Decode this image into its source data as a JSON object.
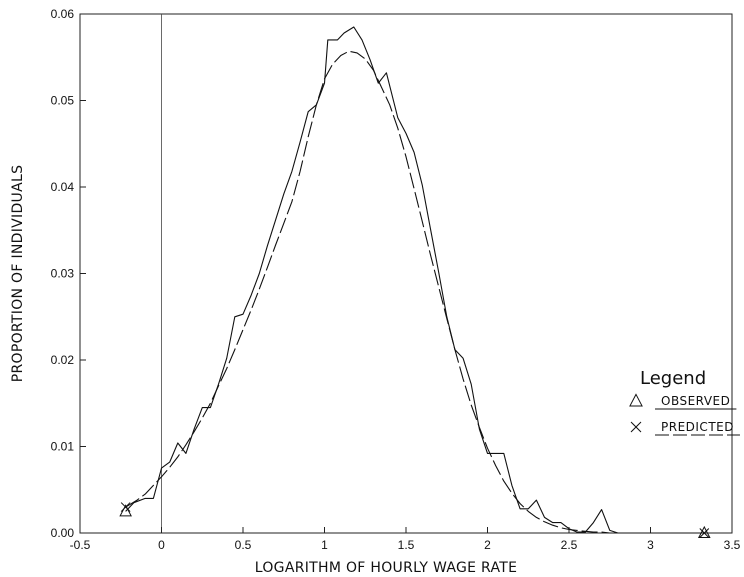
{
  "chart_data": {
    "type": "line",
    "xlabel": "LOGARITHM OF HOURLY WAGE RATE",
    "ylabel": "PROPORTION OF INDIVIDUALS",
    "xlim": [
      -0.5,
      3.5
    ],
    "ylim": [
      0.0,
      0.06
    ],
    "x_ticks": [
      -0.5,
      0,
      0.5,
      1,
      1.5,
      2,
      2.5,
      3,
      3.5
    ],
    "x_tick_labels": [
      "-0.5",
      "0",
      "0.5",
      "1",
      "1.5",
      "2",
      "2.5",
      "3",
      "3.5"
    ],
    "y_ticks": [
      0.0,
      0.01,
      0.02,
      0.03,
      0.04,
      0.05,
      0.06
    ],
    "y_tick_labels": [
      "0.00",
      "0.01",
      "0.02",
      "0.03",
      "0.04",
      "0.05",
      "0.06"
    ],
    "vertical_reference_x": 0,
    "grid": false,
    "legend": {
      "title": "Legend",
      "placement": "right",
      "entries": [
        {
          "marker": "triangle",
          "label": "OBSERVED"
        },
        {
          "marker": "cross",
          "label": "PREDICTED"
        }
      ]
    },
    "series": [
      {
        "name": "OBSERVED",
        "style": "solid",
        "marker": "triangle",
        "x": [
          -0.22,
          -0.17,
          -0.1,
          -0.05,
          0.0,
          0.05,
          0.1,
          0.15,
          0.2,
          0.25,
          0.3,
          0.35,
          0.4,
          0.45,
          0.5,
          0.55,
          0.6,
          0.65,
          0.7,
          0.75,
          0.8,
          0.85,
          0.9,
          0.95,
          1.0,
          1.02,
          1.08,
          1.12,
          1.18,
          1.23,
          1.28,
          1.33,
          1.38,
          1.45,
          1.5,
          1.55,
          1.6,
          1.65,
          1.7,
          1.75,
          1.8,
          1.85,
          1.9,
          1.95,
          2.0,
          2.05,
          2.1,
          2.15,
          2.2,
          2.25,
          2.3,
          2.35,
          2.4,
          2.45,
          2.5,
          2.55,
          2.6,
          2.65,
          2.7,
          2.75,
          2.8,
          2.85,
          2.9,
          2.95,
          3.0,
          3.33
        ],
        "y": [
          0.0025,
          0.0035,
          0.004,
          0.004,
          0.0075,
          0.0082,
          0.0104,
          0.0092,
          0.012,
          0.0145,
          0.0145,
          0.0172,
          0.0202,
          0.025,
          0.0253,
          0.0275,
          0.03,
          0.0332,
          0.0362,
          0.0392,
          0.0418,
          0.0452,
          0.0487,
          0.0495,
          0.052,
          0.057,
          0.057,
          0.0578,
          0.0585,
          0.057,
          0.0547,
          0.052,
          0.0532,
          0.048,
          0.0462,
          0.044,
          0.0402,
          0.0352,
          0.0302,
          0.025,
          0.0212,
          0.0202,
          0.0172,
          0.012,
          0.0092,
          0.0092,
          0.0092,
          0.0055,
          0.0028,
          0.0028,
          0.0038,
          0.0018,
          0.0012,
          0.0012,
          0.0005,
          0.0001,
          0.0001,
          0.0012,
          0.0027,
          0.0003,
          0.0,
          0.0,
          0.0,
          0.0,
          0.0,
          0.0
        ]
      },
      {
        "name": "PREDICTED",
        "style": "dashed",
        "marker": "cross",
        "x": [
          -0.22,
          -0.15,
          -0.1,
          -0.05,
          0.0,
          0.05,
          0.1,
          0.15,
          0.2,
          0.25,
          0.3,
          0.35,
          0.4,
          0.45,
          0.5,
          0.55,
          0.6,
          0.65,
          0.7,
          0.75,
          0.8,
          0.85,
          0.9,
          0.95,
          1.0,
          1.05,
          1.1,
          1.15,
          1.2,
          1.25,
          1.3,
          1.35,
          1.4,
          1.45,
          1.5,
          1.55,
          1.6,
          1.65,
          1.7,
          1.75,
          1.8,
          1.85,
          1.9,
          1.95,
          2.0,
          2.05,
          2.1,
          2.15,
          2.2,
          2.25,
          2.3,
          2.35,
          2.4,
          2.45,
          2.5,
          2.55,
          2.6,
          2.65,
          2.7,
          2.75,
          2.8,
          2.85,
          2.9,
          2.95,
          3.0,
          3.33
        ],
        "y": [
          0.003,
          0.0038,
          0.0045,
          0.0055,
          0.0065,
          0.0076,
          0.0088,
          0.0102,
          0.0117,
          0.0133,
          0.015,
          0.017,
          0.019,
          0.0212,
          0.0235,
          0.0258,
          0.0282,
          0.0307,
          0.0333,
          0.0358,
          0.0383,
          0.0418,
          0.0458,
          0.0495,
          0.0525,
          0.0542,
          0.0552,
          0.0557,
          0.0555,
          0.0548,
          0.0535,
          0.0515,
          0.0495,
          0.0468,
          0.0435,
          0.0398,
          0.036,
          0.0322,
          0.0285,
          0.0248,
          0.0212,
          0.0178,
          0.0148,
          0.0122,
          0.0098,
          0.0078,
          0.006,
          0.0046,
          0.0034,
          0.0025,
          0.0018,
          0.0013,
          0.0009,
          0.0006,
          0.0004,
          0.0003,
          0.0002,
          0.0001,
          0.0001,
          0.0,
          0.0,
          0.0,
          0.0,
          0.0,
          0.0,
          0.0
        ]
      }
    ]
  }
}
